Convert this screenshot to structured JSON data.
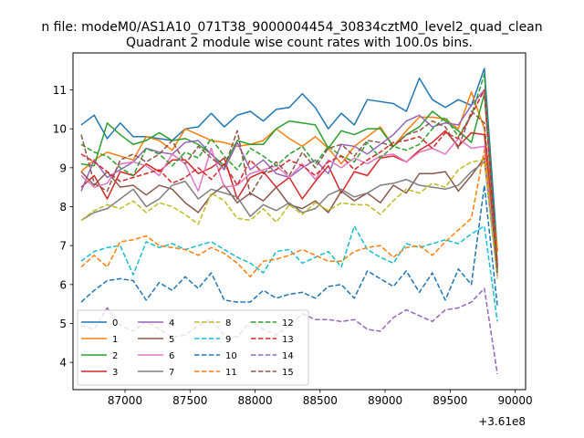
{
  "chart_data": {
    "type": "line",
    "suptitle": "n file: modeM0/AS1A10_071T38_9000004454_30834cztM0_level2_quad_clean",
    "title": "Quadrant 2 module wise count rates with 100.0s bins.",
    "xlabel": "",
    "ylabel": "",
    "offset_text": "+3.61e8",
    "xlim": [
      86600,
      90080
    ],
    "ylim": [
      3.3,
      11.95
    ],
    "xticks": [
      87000,
      87500,
      88000,
      88500,
      89000,
      89500,
      90000
    ],
    "xtick_labels": [
      "87000",
      "87500",
      "88000",
      "88500",
      "89000",
      "89500",
      "90000"
    ],
    "yticks": [
      4,
      5,
      6,
      7,
      8,
      9,
      10,
      11
    ],
    "ytick_labels": [
      "4",
      "5",
      "6",
      "7",
      "8",
      "9",
      "10",
      "11"
    ],
    "grid": false,
    "legend_placement": "lower-left",
    "x": [
      86663,
      86763,
      86863,
      86963,
      87063,
      87163,
      87263,
      87363,
      87463,
      87563,
      87663,
      87763,
      87863,
      87963,
      88063,
      88163,
      88263,
      88363,
      88463,
      88563,
      88663,
      88763,
      88863,
      88963,
      89063,
      89163,
      89263,
      89363,
      89463,
      89563,
      89663,
      89763,
      89863
    ],
    "series": [
      {
        "name": "0",
        "color": "#1f77b4",
        "dash": "solid",
        "values": [
          10.1,
          10.35,
          9.75,
          10.15,
          9.8,
          9.8,
          9.75,
          9.7,
          10.0,
          10.05,
          10.4,
          10.05,
          10.35,
          10.45,
          10.2,
          10.5,
          10.55,
          10.9,
          10.55,
          10.0,
          10.4,
          10.1,
          10.75,
          10.7,
          10.65,
          10.45,
          11.3,
          10.75,
          10.55,
          10.75,
          10.6,
          11.55,
          6.85
        ]
      },
      {
        "name": "1",
        "color": "#ff7f0e",
        "dash": "solid",
        "values": [
          8.9,
          9.2,
          9.4,
          9.3,
          9.2,
          9.8,
          9.7,
          9.45,
          10.0,
          9.85,
          9.7,
          9.65,
          9.55,
          9.6,
          9.7,
          10.0,
          9.75,
          9.55,
          9.8,
          9.5,
          9.1,
          9.55,
          9.8,
          10.05,
          9.55,
          9.95,
          10.3,
          10.3,
          10.25,
          10.0,
          10.95,
          10.0,
          6.9
        ]
      },
      {
        "name": "2",
        "color": "#2ca02c",
        "dash": "solid",
        "values": [
          9.1,
          9.05,
          10.15,
          9.85,
          9.6,
          9.7,
          9.9,
          9.7,
          9.75,
          9.6,
          9.35,
          9.05,
          9.7,
          9.6,
          9.6,
          10.0,
          10.2,
          10.15,
          10.1,
          9.5,
          9.95,
          9.85,
          10.0,
          10.0,
          9.55,
          9.85,
          10.05,
          10.45,
          10.2,
          9.95,
          9.65,
          10.9,
          6.5
        ]
      },
      {
        "name": "3",
        "color": "#d62728",
        "dash": "solid",
        "values": [
          8.5,
          8.8,
          8.2,
          8.9,
          8.8,
          9.1,
          8.9,
          9.2,
          9.2,
          8.85,
          9.0,
          9.25,
          8.2,
          8.75,
          8.9,
          8.5,
          8.75,
          8.2,
          8.65,
          9.05,
          8.35,
          8.9,
          8.8,
          9.25,
          9.3,
          9.15,
          9.45,
          9.65,
          9.95,
          9.55,
          9.9,
          9.85,
          6.6
        ]
      },
      {
        "name": "4",
        "color": "#9467bd",
        "dash": "solid",
        "values": [
          8.4,
          9.2,
          8.75,
          8.95,
          9.15,
          9.5,
          9.4,
          9.35,
          9.65,
          9.7,
          9.35,
          8.95,
          9.65,
          8.95,
          9.2,
          8.85,
          8.75,
          9.0,
          9.2,
          8.85,
          9.6,
          9.55,
          9.35,
          9.6,
          9.85,
          10.2,
          10.35,
          10.05,
          10.15,
          10.1,
          10.6,
          11.0,
          6.4
        ]
      },
      {
        "name": "5",
        "color": "#8c564b",
        "dash": "solid",
        "values": [
          8.9,
          8.55,
          8.9,
          8.5,
          8.55,
          8.3,
          8.55,
          8.45,
          8.1,
          7.85,
          8.3,
          8.55,
          8.1,
          8.35,
          8.15,
          8.5,
          8.05,
          7.95,
          8.15,
          7.85,
          8.4,
          8.15,
          8.35,
          8.1,
          8.55,
          8.35,
          8.85,
          8.85,
          8.9,
          8.4,
          8.8,
          9.25,
          6.35
        ]
      },
      {
        "name": "6",
        "color": "#e377c2",
        "dash": "solid",
        "values": [
          8.8,
          8.5,
          8.6,
          9.1,
          9.15,
          9.05,
          8.8,
          9.35,
          9.1,
          8.4,
          9.5,
          8.5,
          8.55,
          8.85,
          8.95,
          9.05,
          8.75,
          9.1,
          8.7,
          9.2,
          9.0,
          9.25,
          9.1,
          9.3,
          9.35,
          9.15,
          9.4,
          9.5,
          9.35,
          9.75,
          9.5,
          9.55,
          6.2
        ]
      },
      {
        "name": "7",
        "color": "#7f7f7f",
        "dash": "solid",
        "values": [
          7.65,
          7.85,
          7.95,
          8.2,
          8.45,
          8.0,
          8.2,
          8.55,
          8.65,
          8.2,
          8.45,
          8.35,
          8.25,
          7.75,
          8.05,
          7.9,
          8.1,
          7.85,
          7.95,
          8.3,
          8.45,
          8.25,
          8.35,
          8.55,
          8.6,
          8.7,
          8.55,
          8.5,
          8.45,
          8.55,
          8.9,
          9.15,
          6.3
        ]
      },
      {
        "name": "8",
        "color": "#bcbd22",
        "dash": "dashed",
        "values": [
          7.65,
          7.9,
          8.05,
          7.95,
          8.15,
          7.85,
          8.1,
          8.0,
          7.8,
          7.55,
          8.35,
          8.15,
          7.7,
          7.65,
          7.95,
          7.6,
          8.05,
          7.8,
          8.1,
          7.9,
          8.1,
          8.05,
          8.05,
          7.8,
          8.15,
          8.45,
          8.35,
          8.6,
          8.5,
          8.95,
          9.15,
          9.2,
          6.15
        ]
      },
      {
        "name": "9",
        "color": "#17becf",
        "dash": "dashed",
        "values": [
          6.6,
          6.85,
          6.95,
          7.0,
          6.25,
          7.1,
          6.95,
          7.05,
          6.9,
          7.0,
          7.1,
          6.9,
          6.7,
          6.55,
          6.3,
          6.85,
          6.9,
          6.55,
          6.7,
          6.85,
          6.45,
          7.5,
          6.9,
          6.7,
          6.55,
          7.05,
          6.95,
          7.05,
          7.15,
          7.05,
          7.3,
          7.5,
          5.05
        ]
      },
      {
        "name": "10",
        "color": "#1f77b4",
        "dash": "dashed",
        "values": [
          5.55,
          5.85,
          6.1,
          6.15,
          6.1,
          5.6,
          6.05,
          5.85,
          6.2,
          5.9,
          6.3,
          5.6,
          5.55,
          5.55,
          5.85,
          5.65,
          5.75,
          5.8,
          5.65,
          5.95,
          6.0,
          5.65,
          6.35,
          6.15,
          5.95,
          6.35,
          5.8,
          6.3,
          5.6,
          6.4,
          6.0,
          8.55,
          5.45
        ]
      },
      {
        "name": "11",
        "color": "#ff7f0e",
        "dash": "dashed",
        "values": [
          6.45,
          6.75,
          6.45,
          7.1,
          7.15,
          7.25,
          7.0,
          6.95,
          6.9,
          6.75,
          6.95,
          6.8,
          6.55,
          6.2,
          6.6,
          6.65,
          6.75,
          6.9,
          6.75,
          6.6,
          6.6,
          6.85,
          6.95,
          7.0,
          6.7,
          6.95,
          7.0,
          6.75,
          7.1,
          7.4,
          7.7,
          9.45,
          6.85
        ]
      },
      {
        "name": "12",
        "color": "#2ca02c",
        "dash": "dashed",
        "values": [
          9.6,
          9.4,
          9.3,
          9.0,
          8.8,
          9.5,
          9.35,
          9.05,
          9.4,
          9.25,
          9.75,
          9.3,
          8.95,
          9.5,
          9.3,
          9.05,
          9.35,
          9.55,
          9.1,
          9.55,
          9.3,
          9.15,
          9.65,
          9.25,
          9.55,
          9.45,
          9.6,
          10.0,
          10.3,
          9.8,
          10.35,
          11.4,
          6.4
        ]
      },
      {
        "name": "13",
        "color": "#d62728",
        "dash": "dashed",
        "values": [
          9.35,
          9.15,
          8.9,
          8.65,
          8.75,
          8.85,
          8.95,
          8.6,
          8.75,
          9.0,
          8.7,
          9.1,
          8.55,
          9.2,
          8.85,
          8.95,
          9.2,
          9.05,
          8.8,
          9.15,
          9.3,
          8.95,
          9.2,
          9.4,
          9.65,
          9.7,
          9.8,
          9.5,
          9.9,
          9.75,
          10.35,
          11.0,
          6.45
        ]
      },
      {
        "name": "14",
        "color": "#9467bd",
        "dash": "dashed",
        "values": [
          4.95,
          4.85,
          5.4,
          4.95,
          4.8,
          5.05,
          4.85,
          4.65,
          4.7,
          4.95,
          5.1,
          4.7,
          4.65,
          5.05,
          4.85,
          4.7,
          4.95,
          5.25,
          5.1,
          5.1,
          5.05,
          5.1,
          4.85,
          4.8,
          5.15,
          5.35,
          5.2,
          5.05,
          5.35,
          5.4,
          5.55,
          5.9,
          3.7
        ]
      },
      {
        "name": "15",
        "color": "#8c564b",
        "dash": "dashed",
        "values": [
          9.85,
          8.6,
          8.4,
          9.2,
          9.35,
          9.15,
          9.35,
          9.7,
          9.1,
          9.55,
          9.25,
          9.0,
          9.95,
          8.3,
          8.85,
          9.15,
          8.8,
          9.4,
          9.0,
          9.5,
          9.6,
          9.3,
          9.7,
          9.65,
          9.55,
          9.85,
          9.95,
          10.2,
          10.05,
          9.5,
          10.45,
          10.15,
          6.3
        ]
      }
    ]
  }
}
